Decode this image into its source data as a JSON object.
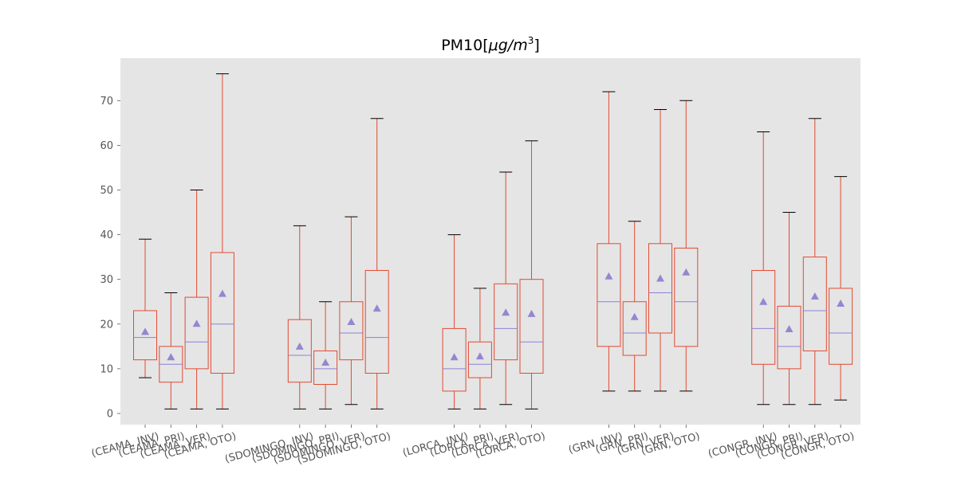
{
  "chart_data": {
    "type": "boxplot",
    "title": "PM10[μg/m³]",
    "title_parts": {
      "prefix": "PM10[",
      "mu": "μ",
      "mid": "g/m",
      "sup": "3",
      "suffix": "]"
    },
    "ylim": [
      -2.5,
      79.5
    ],
    "yticks": [
      0,
      10,
      20,
      30,
      40,
      50,
      60,
      70
    ],
    "grid": false,
    "colors": {
      "box": "#E24A33",
      "median": "#8C82D6",
      "mean": "#9586D2",
      "whisker_cap": "#000000",
      "background": "#E5E5E5"
    },
    "groups": [
      {
        "station": "CEAMA",
        "boxes": [
          {
            "label": "(CEAMA, INV)",
            "whislo": 8,
            "q1": 12,
            "med": 17,
            "q3": 23,
            "whishi": 39,
            "mean": 18.3
          },
          {
            "label": "(CEAMA, PRI)",
            "whislo": 1,
            "q1": 7,
            "med": 11,
            "q3": 15,
            "whishi": 27,
            "mean": 12.6
          },
          {
            "label": "(CEAMA, VER)",
            "whislo": 1,
            "q1": 10,
            "med": 16,
            "q3": 26,
            "whishi": 50,
            "mean": 20.1
          },
          {
            "label": "(CEAMA, OTO)",
            "whislo": 1,
            "q1": 9,
            "med": 20,
            "q3": 36,
            "whishi": 76,
            "mean": 26.8
          }
        ]
      },
      {
        "station": "SDOMINGO",
        "boxes": [
          {
            "label": "(SDOMINGO, INV)",
            "whislo": 1,
            "q1": 7,
            "med": 13,
            "q3": 21,
            "whishi": 42,
            "mean": 15.0
          },
          {
            "label": "(SDOMINGO, PRI)",
            "whislo": 1,
            "q1": 6.5,
            "med": 10,
            "q3": 14,
            "whishi": 25,
            "mean": 11.4
          },
          {
            "label": "(SDOMINGO, VER)",
            "whislo": 2,
            "q1": 12,
            "med": 18,
            "q3": 25,
            "whishi": 44,
            "mean": 20.5
          },
          {
            "label": "(SDOMINGO, OTO)",
            "whislo": 1,
            "q1": 9,
            "med": 17,
            "q3": 32,
            "whishi": 66,
            "mean": 23.5
          }
        ]
      },
      {
        "station": "LORCA",
        "boxes": [
          {
            "label": "(LORCA, INV)",
            "whislo": 1,
            "q1": 5,
            "med": 10,
            "q3": 19,
            "whishi": 40,
            "mean": 12.6
          },
          {
            "label": "(LORCA, PRI)",
            "whislo": 1,
            "q1": 8,
            "med": 11,
            "q3": 16,
            "whishi": 28,
            "mean": 12.8
          },
          {
            "label": "(LORCA, VER)",
            "whislo": 2,
            "q1": 12,
            "med": 19,
            "q3": 29,
            "whishi": 54,
            "mean": 22.6
          },
          {
            "label": "(LORCA, OTO)",
            "whislo": 1,
            "q1": 9,
            "med": 16,
            "q3": 30,
            "whishi": 61,
            "mean": 22.3
          }
        ]
      },
      {
        "station": "GRN",
        "boxes": [
          {
            "label": "(GRN, INV)",
            "whislo": 5,
            "q1": 15,
            "med": 25,
            "q3": 38,
            "whishi": 72,
            "mean": 30.7
          },
          {
            "label": "(GRN, PRI)",
            "whislo": 5,
            "q1": 13,
            "med": 18,
            "q3": 25,
            "whishi": 43,
            "mean": 21.6
          },
          {
            "label": "(GRN, VER)",
            "whislo": 5,
            "q1": 18,
            "med": 27,
            "q3": 38,
            "whishi": 68,
            "mean": 30.2
          },
          {
            "label": "(GRN, OTO)",
            "whislo": 5,
            "q1": 15,
            "med": 25,
            "q3": 37,
            "whishi": 70,
            "mean": 31.6
          }
        ]
      },
      {
        "station": "CONGR",
        "boxes": [
          {
            "label": "(CONGR, INV)",
            "whislo": 2,
            "q1": 11,
            "med": 19,
            "q3": 32,
            "whishi": 63,
            "mean": 25.0
          },
          {
            "label": "(CONGR, PRI)",
            "whislo": 2,
            "q1": 10,
            "med": 15,
            "q3": 24,
            "whishi": 45,
            "mean": 18.9
          },
          {
            "label": "(CONGR, VER)",
            "whislo": 2,
            "q1": 14,
            "med": 23,
            "q3": 35,
            "whishi": 66,
            "mean": 26.2
          },
          {
            "label": "(CONGR, OTO)",
            "whislo": 3,
            "q1": 11,
            "med": 18,
            "q3": 28,
            "whishi": 53,
            "mean": 24.6
          }
        ]
      }
    ]
  }
}
